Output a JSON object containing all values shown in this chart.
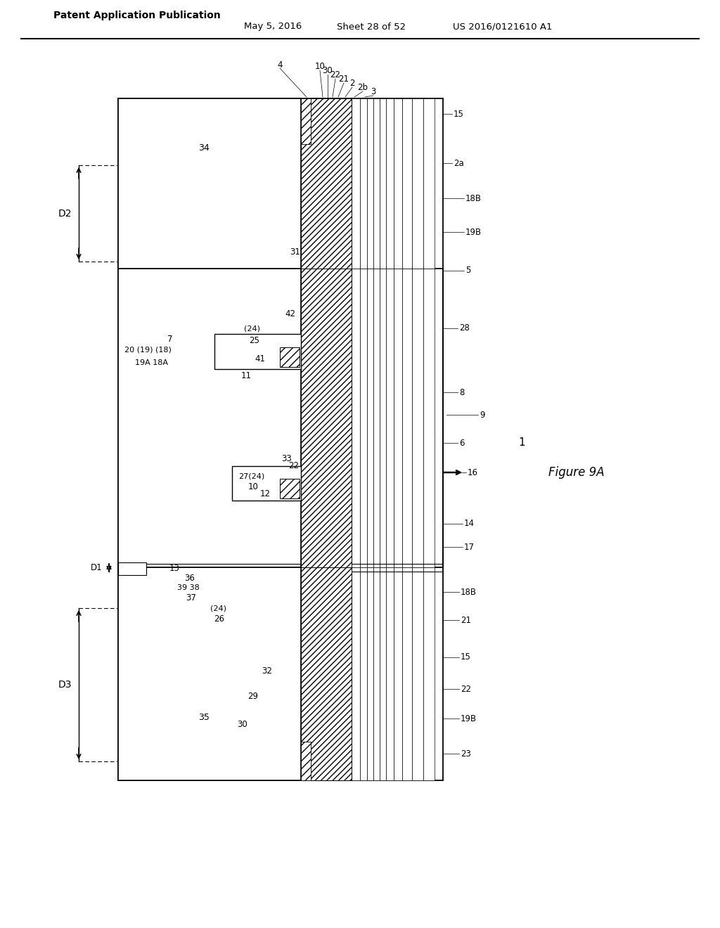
{
  "header_left": "Patent Application Publication",
  "header_mid1": "May 5, 2016",
  "header_mid2": "Sheet 28 of 52",
  "header_right": "US 2016/0121610 A1",
  "figure_label": "Figure 9A",
  "bg": "#ffffff"
}
